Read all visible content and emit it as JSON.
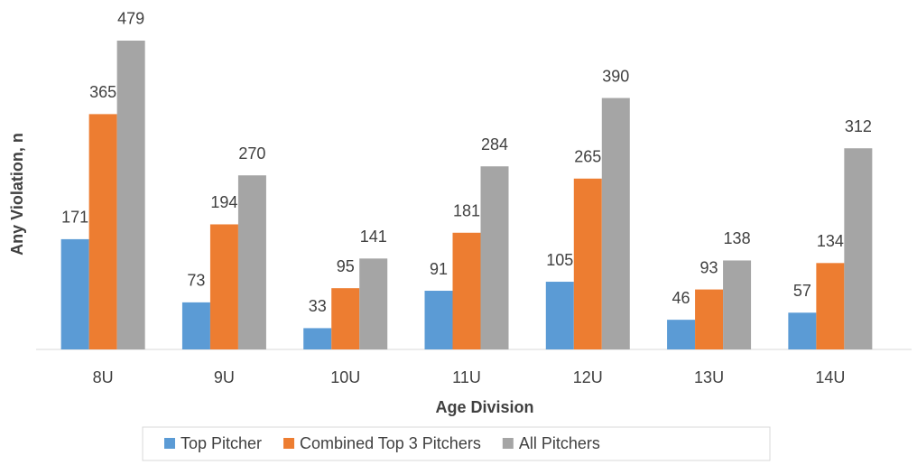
{
  "chart_data": {
    "type": "bar",
    "x_label": "Age Division",
    "y_label": "Any Violation, n",
    "categories": [
      "8U",
      "9U",
      "10U",
      "11U",
      "12U",
      "13U",
      "14U"
    ],
    "series": [
      {
        "name": "Top Pitcher",
        "color": "#5b9bd5",
        "values": [
          171,
          73,
          33,
          91,
          105,
          46,
          57
        ]
      },
      {
        "name": "Combined Top 3 Pitchers",
        "color": "#ed7d31",
        "values": [
          365,
          194,
          95,
          181,
          265,
          93,
          134
        ]
      },
      {
        "name": "All Pitchers",
        "color": "#a5a5a5",
        "values": [
          479,
          270,
          141,
          284,
          390,
          138,
          312
        ]
      }
    ],
    "ylim": [
      0,
      500
    ],
    "legend": "bottom"
  }
}
